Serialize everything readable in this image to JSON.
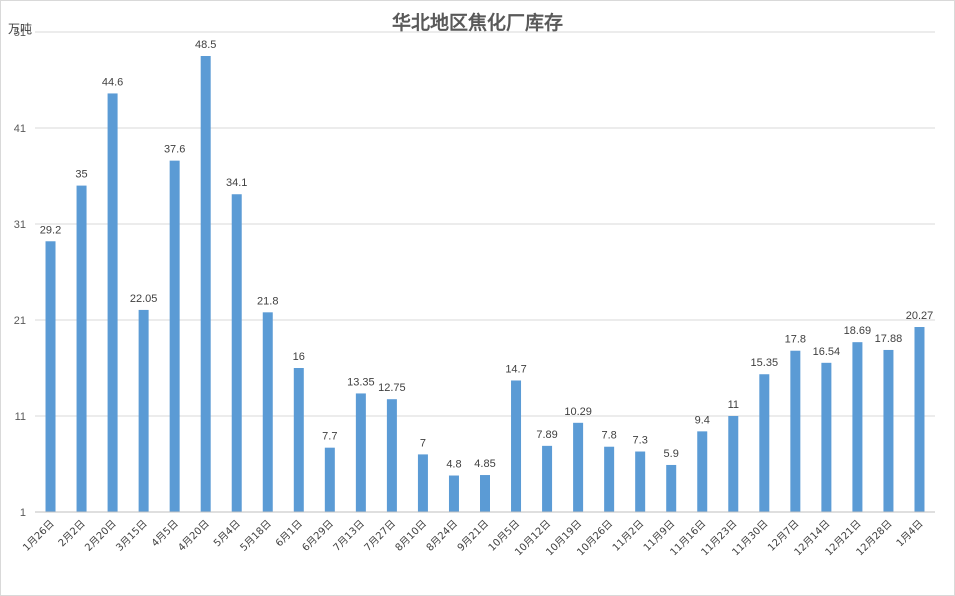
{
  "chart_data": {
    "type": "bar",
    "title": "华北地区焦化厂库存",
    "unit": "万吨",
    "color": "#5b9bd5",
    "gridlines": true,
    "legend": "none",
    "ylim": [
      1,
      51
    ],
    "yticks": [
      1,
      11,
      21,
      31,
      41,
      51
    ],
    "categories": [
      "1月26日",
      "2月2日",
      "2月20日",
      "3月15日",
      "4月5日",
      "4月20日",
      "5月4日",
      "5月18日",
      "6月1日",
      "6月29日",
      "7月13日",
      "7月27日",
      "8月10日",
      "8月24日",
      "9月21日",
      "10月5日",
      "10月12日",
      "10月19日",
      "10月26日",
      "11月2日",
      "11月9日",
      "11月16日",
      "11月23日",
      "11月30日",
      "12月7日",
      "12月14日",
      "12月21日",
      "12月28日",
      "1月4日"
    ],
    "values": [
      29.2,
      35,
      44.6,
      22.05,
      37.6,
      48.5,
      34.1,
      21.8,
      16,
      7.7,
      13.35,
      12.75,
      7,
      4.8,
      4.85,
      14.7,
      7.89,
      10.29,
      7.8,
      7.3,
      5.9,
      9.4,
      11,
      15.35,
      17.8,
      16.54,
      18.69,
      17.88,
      20.27
    ]
  }
}
